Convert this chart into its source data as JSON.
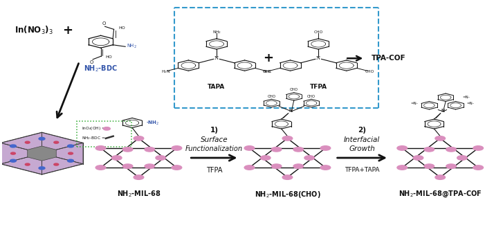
{
  "background_color": "#ffffff",
  "figure_width": 7.27,
  "figure_height": 3.25,
  "dpi": 100,
  "node_color": "#da8fbe",
  "text_color_blue": "#3355aa",
  "text_color_black": "#111111",
  "dashed_box_color": "#3399cc",
  "green_box_color": "#33aa33",
  "label_mof1": "NH$_2$-MIL-68",
  "label_mof2": "NH$_2$-MIL-68(CHO)",
  "label_mof3": "NH$_2$-MIL-68@TPA-COF"
}
